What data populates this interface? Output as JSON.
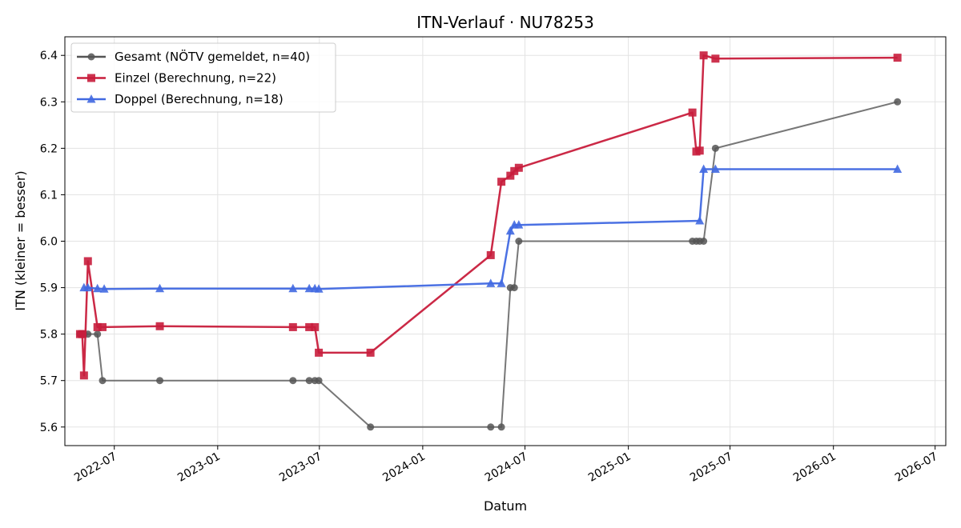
{
  "chart_data": {
    "type": "line",
    "title": "ITN-Verlauf · NU78253",
    "xlabel": "Datum",
    "ylabel": "ITN  (kleiner = besser)",
    "xlim": [
      "2022-04-04",
      "2026-07-20"
    ],
    "ylim": [
      5.56,
      6.44
    ],
    "x_ticks": [
      "2022-07",
      "2023-01",
      "2023-07",
      "2024-01",
      "2024-07",
      "2025-01",
      "2025-07",
      "2026-01",
      "2026-07"
    ],
    "y_ticks": [
      "5.6",
      "5.7",
      "5.8",
      "5.9",
      "6.0",
      "6.1",
      "6.2",
      "6.3",
      "6.4"
    ],
    "grid": true,
    "legend_position": "top-left",
    "series": [
      {
        "name": "Gesamt (NÖTV gemeldet, n=40)",
        "color": "#555555",
        "marker": "circle",
        "points": [
          [
            "2022-05-01",
            5.8
          ],
          [
            "2022-05-08",
            5.8
          ],
          [
            "2022-05-15",
            5.8
          ],
          [
            "2022-06-01",
            5.8
          ],
          [
            "2022-06-10",
            5.7
          ],
          [
            "2022-09-20",
            5.7
          ],
          [
            "2023-05-15",
            5.7
          ],
          [
            "2023-06-13",
            5.7
          ],
          [
            "2023-06-23",
            5.7
          ],
          [
            "2023-06-30",
            5.7
          ],
          [
            "2023-09-30",
            5.6
          ],
          [
            "2024-05-01",
            5.6
          ],
          [
            "2024-05-20",
            5.6
          ],
          [
            "2024-06-05",
            5.9
          ],
          [
            "2024-06-12",
            5.9
          ],
          [
            "2024-06-20",
            6.0
          ],
          [
            "2025-04-25",
            6.0
          ],
          [
            "2025-05-02",
            6.0
          ],
          [
            "2025-05-08",
            6.0
          ],
          [
            "2025-05-15",
            6.0
          ],
          [
            "2025-06-05",
            6.2
          ],
          [
            "2026-04-25",
            6.3
          ]
        ]
      },
      {
        "name": "Einzel (Berechnung, n=22)",
        "color": "#c81d3c",
        "marker": "square",
        "points": [
          [
            "2022-05-01",
            5.8
          ],
          [
            "2022-05-05",
            5.8
          ],
          [
            "2022-05-08",
            5.711
          ],
          [
            "2022-05-15",
            5.957
          ],
          [
            "2022-06-01",
            5.815
          ],
          [
            "2022-06-10",
            5.815
          ],
          [
            "2022-09-20",
            5.817
          ],
          [
            "2023-05-15",
            5.815
          ],
          [
            "2023-06-13",
            5.815
          ],
          [
            "2023-06-23",
            5.815
          ],
          [
            "2023-06-30",
            5.76
          ],
          [
            "2023-09-30",
            5.76
          ],
          [
            "2024-05-01",
            5.97
          ],
          [
            "2024-05-20",
            6.128
          ],
          [
            "2024-06-05",
            6.141
          ],
          [
            "2024-06-12",
            6.151
          ],
          [
            "2024-06-20",
            6.158
          ],
          [
            "2025-04-25",
            6.277
          ],
          [
            "2025-05-02",
            6.193
          ],
          [
            "2025-05-08",
            6.195
          ],
          [
            "2025-05-15",
            6.4
          ],
          [
            "2025-06-05",
            6.393
          ],
          [
            "2026-04-25",
            6.395
          ]
        ]
      },
      {
        "name": "Doppel (Berechnung, n=18)",
        "color": "#4169e1",
        "marker": "triangle",
        "points": [
          [
            "2022-05-08",
            5.9
          ],
          [
            "2022-05-15",
            5.9
          ],
          [
            "2022-06-01",
            5.898
          ],
          [
            "2022-06-13",
            5.897
          ],
          [
            "2022-09-20",
            5.898
          ],
          [
            "2023-05-15",
            5.898
          ],
          [
            "2023-06-13",
            5.898
          ],
          [
            "2023-06-23",
            5.898
          ],
          [
            "2023-06-30",
            5.897
          ],
          [
            "2024-05-01",
            5.909
          ],
          [
            "2024-05-20",
            5.909
          ],
          [
            "2024-06-05",
            6.022
          ],
          [
            "2024-06-12",
            6.035
          ],
          [
            "2024-06-20",
            6.035
          ],
          [
            "2025-05-08",
            6.044
          ],
          [
            "2025-05-15",
            6.155
          ],
          [
            "2025-06-05",
            6.155
          ],
          [
            "2026-04-25",
            6.155
          ]
        ]
      }
    ]
  }
}
